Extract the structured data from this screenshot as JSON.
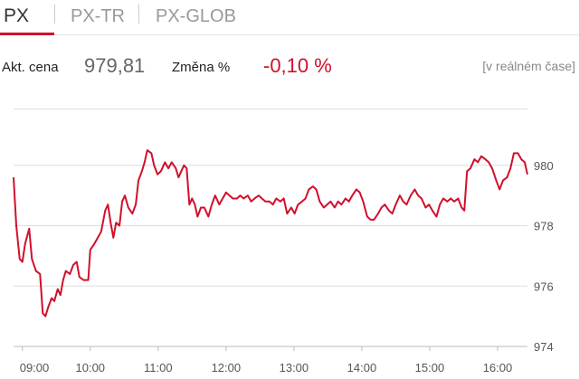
{
  "tabs": [
    "PX",
    "PX-TR",
    "PX-GLOB"
  ],
  "quote": {
    "price_label": "Akt. cena",
    "price": "979,81",
    "change_label": "Změna %",
    "change": "-0,10 %",
    "note": "[v reálném čase]"
  },
  "chart_data": {
    "type": "line",
    "x": [
      8.87,
      8.91,
      8.96,
      9.0,
      9.04,
      9.1,
      9.14,
      9.2,
      9.26,
      9.3,
      9.34,
      9.38,
      9.43,
      9.47,
      9.52,
      9.56,
      9.6,
      9.64,
      9.7,
      9.75,
      9.8,
      9.84,
      9.9,
      9.97,
      10.0,
      10.06,
      10.11,
      10.16,
      10.22,
      10.26,
      10.3,
      10.34,
      10.38,
      10.43,
      10.47,
      10.51,
      10.56,
      10.62,
      10.67,
      10.71,
      10.76,
      10.8,
      10.84,
      10.9,
      10.94,
      10.99,
      11.04,
      11.1,
      11.15,
      11.2,
      11.26,
      11.3,
      11.34,
      11.38,
      11.42,
      11.46,
      11.5,
      11.54,
      11.58,
      11.63,
      11.68,
      11.74,
      11.79,
      11.84,
      11.9,
      11.95,
      12.0,
      12.05,
      12.1,
      12.16,
      12.21,
      12.26,
      12.32,
      12.37,
      12.42,
      12.48,
      12.53,
      12.58,
      12.64,
      12.69,
      12.74,
      12.8,
      12.85,
      12.9,
      12.96,
      13.01,
      13.06,
      13.12,
      13.17,
      13.22,
      13.28,
      13.33,
      13.38,
      13.44,
      13.49,
      13.54,
      13.6,
      13.65,
      13.7,
      13.76,
      13.81,
      13.86,
      13.92,
      13.97,
      14.02,
      14.08,
      14.13,
      14.18,
      14.24,
      14.29,
      14.34,
      14.4,
      14.45,
      14.5,
      14.56,
      14.61,
      14.66,
      14.72,
      14.78,
      14.83,
      14.88,
      14.94,
      14.99,
      15.04,
      15.1,
      15.15,
      15.2,
      15.26,
      15.31,
      15.36,
      15.42,
      15.47,
      15.51,
      15.55,
      15.6,
      15.66,
      15.71,
      15.76,
      15.82,
      15.87,
      15.92,
      15.98,
      16.03,
      16.08,
      16.14,
      16.19,
      16.24,
      16.3,
      16.35,
      16.4,
      16.44
    ],
    "series": [
      {
        "color": "#d0102c",
        "values": [
          979.6,
          978.0,
          976.9,
          976.8,
          977.4,
          977.9,
          976.9,
          976.5,
          976.4,
          975.1,
          975.0,
          975.3,
          975.6,
          975.5,
          975.9,
          975.7,
          976.2,
          976.5,
          976.4,
          976.7,
          976.8,
          976.3,
          976.2,
          976.2,
          977.2,
          977.4,
          977.6,
          977.8,
          978.5,
          978.7,
          978.1,
          977.6,
          978.1,
          978.0,
          978.8,
          979.0,
          978.6,
          978.4,
          978.7,
          979.5,
          979.8,
          980.1,
          980.5,
          980.4,
          980.0,
          979.7,
          979.8,
          980.1,
          979.9,
          980.1,
          979.9,
          979.6,
          979.8,
          980.0,
          979.9,
          978.7,
          978.9,
          978.7,
          978.3,
          978.6,
          978.6,
          978.3,
          978.7,
          979.0,
          978.7,
          978.9,
          979.1,
          979.0,
          978.9,
          978.9,
          979.0,
          978.9,
          979.0,
          978.8,
          978.9,
          979.0,
          978.9,
          978.8,
          978.8,
          978.7,
          978.9,
          978.8,
          978.9,
          978.4,
          978.6,
          978.4,
          978.7,
          978.8,
          978.9,
          979.2,
          979.3,
          979.2,
          978.8,
          978.6,
          978.7,
          978.8,
          978.6,
          978.8,
          978.7,
          978.9,
          978.8,
          979.0,
          979.2,
          979.1,
          978.8,
          978.3,
          978.2,
          978.2,
          978.4,
          978.6,
          978.7,
          978.5,
          978.4,
          978.7,
          979.0,
          978.8,
          978.7,
          979.0,
          979.2,
          979.0,
          978.9,
          978.6,
          978.7,
          978.5,
          978.3,
          978.7,
          978.9,
          978.8,
          978.9,
          978.8,
          978.9,
          978.6,
          978.5,
          979.8,
          979.9,
          980.2,
          980.1,
          980.3,
          980.2,
          980.1,
          979.9,
          979.5,
          979.2,
          979.5,
          979.6,
          979.9,
          980.4,
          980.4,
          980.2,
          980.1,
          979.7
        ]
      }
    ],
    "xlim": [
      8.87,
      16.44
    ],
    "xticks": [
      {
        "value": 9,
        "label": "09:00"
      },
      {
        "value": 10,
        "label": "10:00"
      },
      {
        "value": 11,
        "label": "11:00"
      },
      {
        "value": 12,
        "label": "12:00"
      },
      {
        "value": 13,
        "label": "13:00"
      },
      {
        "value": 14,
        "label": "14:00"
      },
      {
        "value": 15,
        "label": "15:00"
      },
      {
        "value": 16,
        "label": "16:00"
      }
    ],
    "ylim": [
      974,
      982
    ],
    "yticks": [
      974,
      976,
      978,
      980
    ],
    "grid": true
  }
}
